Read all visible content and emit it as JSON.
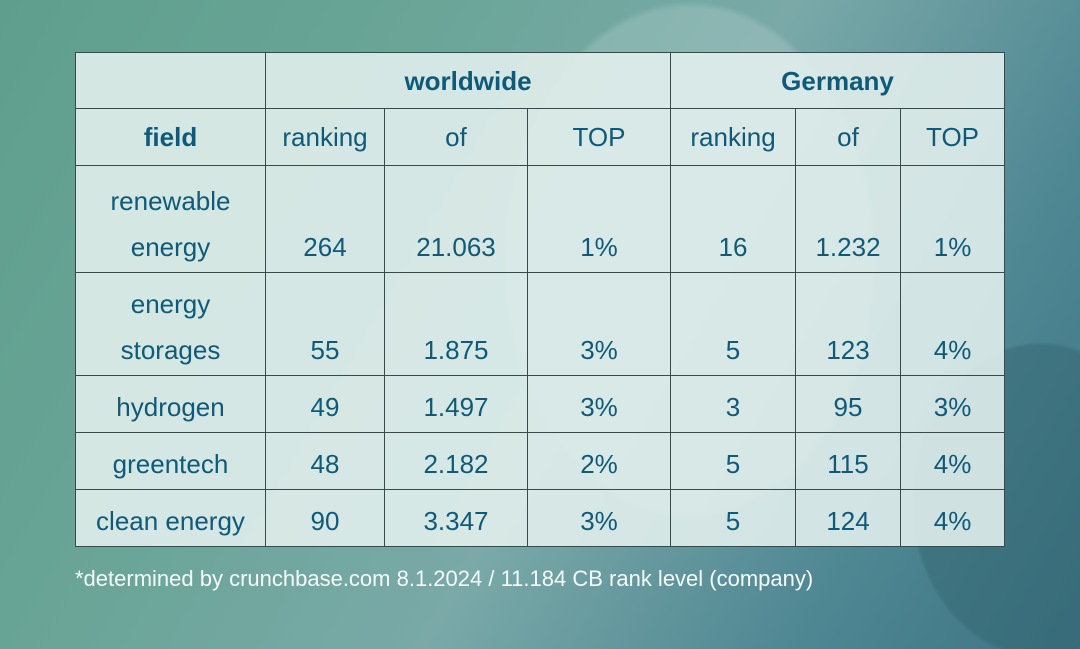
{
  "header": {
    "worldwide": "worldwide",
    "germany": "Germany"
  },
  "columns": {
    "field": "field",
    "ranking": "ranking",
    "of": "of",
    "top": "TOP"
  },
  "rows": [
    {
      "field": [
        "renewable",
        "energy"
      ],
      "w_rank": "264",
      "w_of": "21.063",
      "w_top": "1%",
      "g_rank": "16",
      "g_of": "1.232",
      "g_top": "1%"
    },
    {
      "field": [
        "energy",
        "storages"
      ],
      "w_rank": "55",
      "w_of": "1.875",
      "w_top": "3%",
      "g_rank": "5",
      "g_of": "123",
      "g_top": "4%"
    },
    {
      "field": [
        "hydrogen"
      ],
      "w_rank": "49",
      "w_of": "1.497",
      "w_top": "3%",
      "g_rank": "3",
      "g_of": "95",
      "g_top": "3%"
    },
    {
      "field": [
        "greentech"
      ],
      "w_rank": "48",
      "w_of": "2.182",
      "w_top": "2%",
      "g_rank": "5",
      "g_of": "115",
      "g_top": "4%"
    },
    {
      "field": [
        "clean energy"
      ],
      "w_rank": "90",
      "w_of": "3.347",
      "w_top": "3%",
      "g_rank": "5",
      "g_of": "124",
      "g_top": "4%"
    }
  ],
  "footnote": "*determined by crunchbase.com 8.1.2024 / 11.184 CB rank level (company)",
  "colors": {
    "text": "#0e5a78",
    "background": "#6aa598"
  }
}
